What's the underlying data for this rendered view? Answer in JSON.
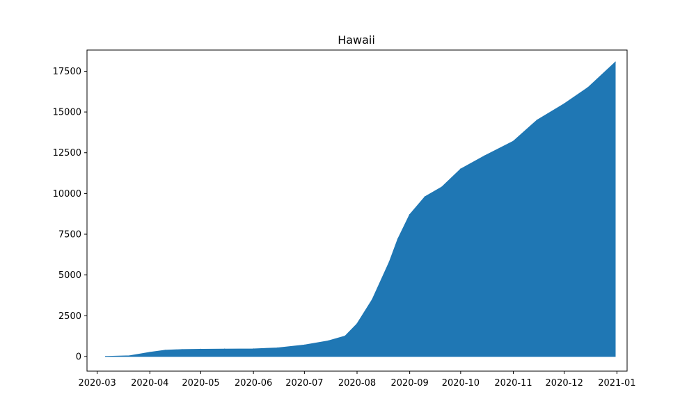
{
  "chart_data": {
    "type": "line",
    "title": "Hawaii",
    "xlabel": "",
    "ylabel": "",
    "series_color": "#1f77b4",
    "xlim": [
      "2020-02-24",
      "2021-01-07"
    ],
    "ylim": [
      -900,
      18800
    ],
    "grid": false,
    "legend": "none",
    "x_ticks": [
      "2020-03",
      "2020-04",
      "2020-05",
      "2020-06",
      "2020-07",
      "2020-08",
      "2020-09",
      "2020-10",
      "2020-11",
      "2020-12",
      "2021-01"
    ],
    "y_ticks": [
      0,
      2500,
      5000,
      7500,
      10000,
      12500,
      15000,
      17500
    ],
    "y_tick_labels": [
      "0",
      "2500",
      "5000",
      "7500",
      "10000",
      "12500",
      "15000",
      "17500"
    ],
    "series": [
      {
        "dates": [
          "2020-03-06",
          "2020-03-20",
          "2020-04-01",
          "2020-04-10",
          "2020-04-20",
          "2020-05-01",
          "2020-05-15",
          "2020-06-01",
          "2020-06-15",
          "2020-07-01",
          "2020-07-15",
          "2020-07-25",
          "2020-08-01",
          "2020-08-10",
          "2020-08-20",
          "2020-08-25",
          "2020-09-01",
          "2020-09-10",
          "2020-09-20",
          "2020-10-01",
          "2020-10-15",
          "2020-11-01",
          "2020-11-15",
          "2020-12-01",
          "2020-12-15",
          "2020-12-31"
        ],
        "values": [
          0,
          40,
          250,
          380,
          420,
          440,
          450,
          460,
          520,
          700,
          950,
          1250,
          2000,
          3500,
          5800,
          7200,
          8700,
          9800,
          10400,
          11500,
          12300,
          13200,
          14500,
          15500,
          16500,
          18050
        ]
      }
    ]
  }
}
